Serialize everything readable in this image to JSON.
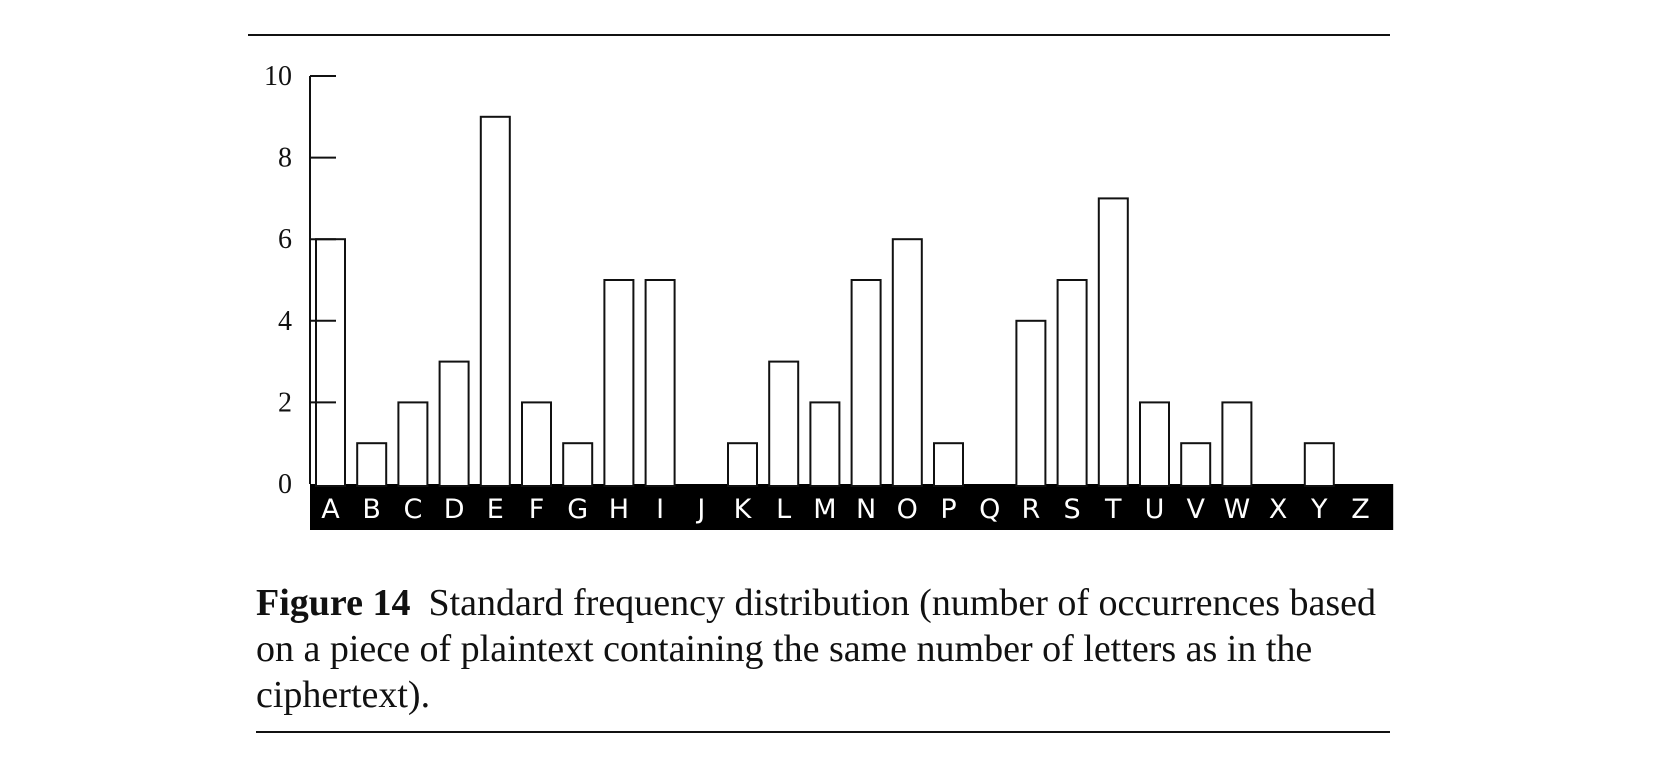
{
  "chart_data": {
    "type": "bar",
    "categories": [
      "A",
      "B",
      "C",
      "D",
      "E",
      "F",
      "G",
      "H",
      "I",
      "J",
      "K",
      "L",
      "M",
      "N",
      "O",
      "P",
      "Q",
      "R",
      "S",
      "T",
      "U",
      "V",
      "W",
      "X",
      "Y",
      "Z"
    ],
    "values": [
      6,
      1,
      2,
      3,
      9,
      2,
      1,
      5,
      5,
      0,
      1,
      3,
      2,
      5,
      6,
      1,
      0,
      4,
      5,
      7,
      2,
      1,
      2,
      0,
      1,
      0
    ],
    "yticks": [
      0,
      2,
      4,
      6,
      8,
      10
    ],
    "ylim": [
      0,
      10
    ],
    "bar_fill": "#ffffff",
    "bar_stroke": "#111111",
    "axis_band_color": "#000000"
  },
  "caption": {
    "label": "Figure 14",
    "text": "Standard frequency distribution (number of occurrences based on a piece of plaintext containing the same number of letters as in the ciphertext)."
  }
}
